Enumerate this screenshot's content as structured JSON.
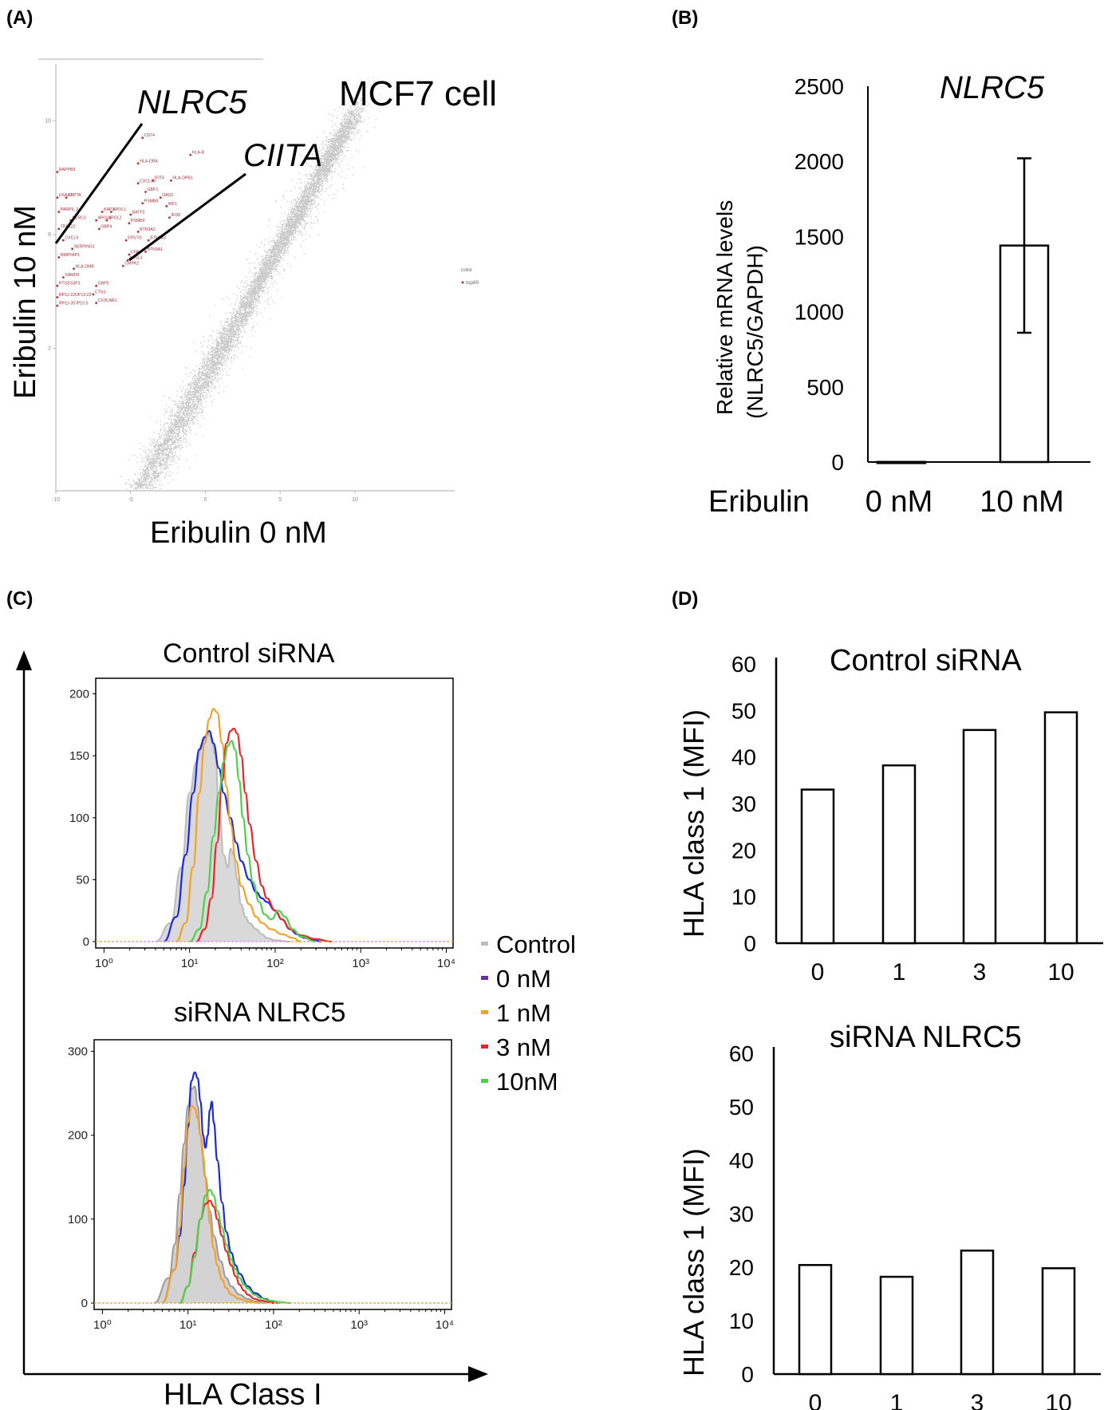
{
  "chart_data": [
    {
      "panel": "(A)",
      "type": "scatter",
      "title": "MCF7 cell",
      "xlabel": "Eribulin 0 nM",
      "ylabel": "Eribulin 10 nM",
      "xlim": [
        -10,
        14
      ],
      "ylim": [
        -3,
        12
      ],
      "x_ticks": [
        "-10",
        "-5",
        "0",
        "5",
        "10"
      ],
      "y_ticks": [
        "2",
        "6",
        "10"
      ],
      "callouts": [
        "NLRC5",
        "CIITA"
      ],
      "highlighted_genes": [
        {
          "label": "CD74",
          "x": -4.2,
          "y": 9.4
        },
        {
          "label": "HLA-B",
          "x": -1.0,
          "y": 8.8
        },
        {
          "label": "HLA-DRA",
          "x": -4.5,
          "y": 8.5
        },
        {
          "label": "IFIT6",
          "x": -3.5,
          "y": 7.9
        },
        {
          "label": "HLA-DPB1",
          "x": -2.3,
          "y": 7.9
        },
        {
          "label": "CXCL10",
          "x": -4.5,
          "y": 7.8
        },
        {
          "label": "GBP1",
          "x": -4.0,
          "y": 7.5
        },
        {
          "label": "OAS2",
          "x": -3.0,
          "y": 7.3
        },
        {
          "label": "PSMB8",
          "x": -4.2,
          "y": 7.1
        },
        {
          "label": "IRF1",
          "x": -2.6,
          "y": 7.0
        },
        {
          "label": "RAPPB3",
          "x": -9.9,
          "y": 8.2
        },
        {
          "label": "USA17",
          "x": -9.9,
          "y": 7.3
        },
        {
          "label": "KBPTA",
          "x": -9.3,
          "y": 7.3
        },
        {
          "label": "KAP1",
          "x": -6.9,
          "y": 6.8
        },
        {
          "label": "APOL1",
          "x": -6.3,
          "y": 6.8
        },
        {
          "label": "PARP9_2",
          "x": -9.8,
          "y": 6.8
        },
        {
          "label": "NLRC3",
          "x": -9.0,
          "y": 6.5
        },
        {
          "label": "APOL3",
          "x": -7.3,
          "y": 6.5
        },
        {
          "label": "APOL2",
          "x": -6.6,
          "y": 6.5
        },
        {
          "label": "BATF2",
          "x": -5.0,
          "y": 6.7
        },
        {
          "label": "GBP4",
          "x": -7.1,
          "y": 6.2
        },
        {
          "label": "PSMB9",
          "x": -5.1,
          "y": 6.4
        },
        {
          "label": "IFI30",
          "x": -2.4,
          "y": 6.6
        },
        {
          "label": "TRIM22",
          "x": -9.8,
          "y": 6.2
        },
        {
          "label": "BTN3A2",
          "x": -4.5,
          "y": 6.1
        },
        {
          "label": "EPSTI1",
          "x": -5.3,
          "y": 5.8
        },
        {
          "label": "CXCL9",
          "x": -9.5,
          "y": 5.8
        },
        {
          "label": "BTN3A3",
          "x": -3.8,
          "y": 5.8
        },
        {
          "label": "SERPING1",
          "x": -8.9,
          "y": 5.5
        },
        {
          "label": "CFB",
          "x": -5.1,
          "y": 5.3
        },
        {
          "label": "BTN3A1",
          "x": -4.0,
          "y": 5.4
        },
        {
          "label": "NMPFAP1",
          "x": -9.8,
          "y": 5.2
        },
        {
          "label": "ACSL3",
          "x": -5.2,
          "y": 5.1
        },
        {
          "label": "CMPK2",
          "x": -5.5,
          "y": 4.9
        },
        {
          "label": "HLA-DMB",
          "x": -8.8,
          "y": 4.8
        },
        {
          "label": "SAMD9",
          "x": -9.5,
          "y": 4.5
        },
        {
          "label": "PTGES3P1",
          "x": -9.9,
          "y": 4.2
        },
        {
          "label": "GBP5",
          "x": -7.3,
          "y": 4.2
        },
        {
          "label": "CTSS",
          "x": -7.5,
          "y": 3.9
        },
        {
          "label": "CX3CAR1",
          "x": -7.3,
          "y": 3.6
        },
        {
          "label": "RP11-22OP13.23",
          "x": -9.9,
          "y": 3.8
        },
        {
          "label": "RP11-357P10.5",
          "x": -9.9,
          "y": 3.5
        }
      ],
      "legend": {
        "title": "color",
        "entries": [
          "top80"
        ],
        "placement": "right"
      }
    },
    {
      "panel": "(B)",
      "type": "bar",
      "title": "NLRC5",
      "ylabel": "Relative mRNA levels (NLRC5/GAPDH)",
      "ylabel_line1": "Relative mRNA levels",
      "ylabel_line2": "(NLRC5/GAPDH)",
      "x_title": "Eribulin",
      "categories": [
        "0 nM",
        "10 nM"
      ],
      "values": [
        1,
        1440
      ],
      "error": [
        3,
        580
      ],
      "ylim": [
        0,
        2500
      ],
      "y_ticks": [
        "0",
        "500",
        "1000",
        "1500",
        "2000",
        "2500"
      ]
    },
    {
      "panel": "(C)",
      "type": "line",
      "subtype": "flow cytometry histogram overlay",
      "xlabel": "HLA Class I",
      "x_scale": "log",
      "xlim": [
        0.8,
        12000
      ],
      "x_ticks": [
        "10⁰",
        "10¹",
        "10²",
        "10³",
        "10⁴"
      ],
      "legend": {
        "placement": "right",
        "entries": [
          {
            "name": "Control",
            "color": "#bdbdbd"
          },
          {
            "name": "0 nM",
            "color": "#6b2ca6"
          },
          {
            "name": "1 nM",
            "color": "#f5a125"
          },
          {
            "name": "3 nM",
            "color": "#e8262a"
          },
          {
            "name": "10nM",
            "color": "#4fd04a"
          }
        ]
      },
      "plots": [
        {
          "title": "Control siRNA",
          "ylim": [
            0,
            210
          ],
          "y_ticks": [
            "0",
            "50",
            "100",
            "150",
            "200"
          ],
          "series": [
            {
              "name": "Control",
              "color": "#bdbdbd",
              "fill": "#d9d9d9",
              "x": [
                4,
                6,
                8,
                10,
                12,
                14,
                16,
                18,
                20,
                22,
                25,
                28,
                30,
                33,
                36,
                40,
                45,
                50,
                60,
                70,
                80,
                100,
                150
              ],
              "y": [
                0,
                15,
                60,
                120,
                145,
                160,
                168,
                165,
                150,
                110,
                70,
                60,
                75,
                70,
                50,
                30,
                20,
                15,
                10,
                6,
                3,
                1,
                0
              ]
            },
            {
              "name": "0 nM",
              "color": "#1c2ad6",
              "x": [
                5,
                7,
                9,
                11,
                13,
                15,
                17,
                19,
                22,
                25,
                30,
                35,
                40,
                50,
                60,
                70,
                80,
                100,
                120,
                150,
                180,
                220,
                280,
                350
              ],
              "y": [
                0,
                20,
                70,
                120,
                155,
                165,
                170,
                160,
                140,
                120,
                100,
                80,
                65,
                50,
                40,
                35,
                32,
                25,
                18,
                10,
                6,
                3,
                1,
                0
              ]
            },
            {
              "name": "1 nM",
              "color": "#f5a125",
              "x": [
                7,
                9,
                11,
                13,
                15,
                17,
                19,
                21,
                24,
                27,
                30,
                35,
                40,
                50,
                60,
                70,
                90,
                120,
                160,
                200
              ],
              "y": [
                0,
                15,
                60,
                120,
                160,
                180,
                188,
                185,
                160,
                125,
                95,
                65,
                45,
                30,
                20,
                15,
                10,
                6,
                3,
                0
              ]
            },
            {
              "name": "3 nM",
              "color": "#e8262a",
              "x": [
                12,
                15,
                18,
                21,
                24,
                27,
                30,
                33,
                36,
                40,
                45,
                50,
                60,
                70,
                80,
                100,
                120,
                150,
                200,
                300,
                450
              ],
              "y": [
                0,
                10,
                35,
                80,
                130,
                160,
                170,
                172,
                168,
                150,
                120,
                95,
                65,
                45,
                35,
                25,
                18,
                10,
                5,
                2,
                0
              ]
            },
            {
              "name": "10nM",
              "color": "#4fd04a",
              "x": [
                10,
                13,
                16,
                19,
                22,
                25,
                28,
                31,
                34,
                38,
                42,
                48,
                55,
                65,
                75,
                90,
                110,
                130,
                160,
                200,
                300
              ],
              "y": [
                0,
                10,
                40,
                85,
                120,
                145,
                158,
                162,
                155,
                130,
                100,
                70,
                48,
                32,
                22,
                18,
                25,
                20,
                10,
                4,
                0
              ]
            }
          ]
        },
        {
          "title": "siRNA NLRC5",
          "ylim": [
            0,
            310
          ],
          "y_ticks": [
            "0",
            "100",
            "200",
            "300"
          ],
          "series": [
            {
              "name": "Control",
              "color": "#9e9e9e",
              "fill": "#d3d3d3",
              "x": [
                4,
                6,
                7,
                8,
                9,
                10,
                11,
                12,
                13,
                14,
                16,
                18,
                20,
                24,
                28,
                32,
                40,
                50,
                60,
                80
              ],
              "y": [
                0,
                30,
                70,
                130,
                190,
                235,
                255,
                258,
                235,
                200,
                150,
                110,
                80,
                50,
                30,
                20,
                10,
                5,
                2,
                0
              ]
            },
            {
              "name": "0 nM",
              "color": "#1c2ad6",
              "x": [
                5,
                7,
                8,
                9,
                10,
                11,
                12,
                13,
                14,
                15,
                16,
                17,
                18,
                19,
                20,
                22,
                25,
                28,
                32,
                36,
                40,
                50,
                60,
                80,
                100
              ],
              "y": [
                0,
                40,
                80,
                140,
                210,
                265,
                275,
                268,
                240,
                200,
                185,
                200,
                230,
                240,
                215,
                170,
                120,
                85,
                60,
                45,
                35,
                20,
                12,
                5,
                0
              ]
            },
            {
              "name": "1 nM",
              "color": "#f5a125",
              "x": [
                5,
                7,
                8,
                9,
                10,
                11,
                12,
                13,
                14,
                15,
                16,
                17,
                18,
                20,
                22,
                25,
                28,
                32,
                40,
                50,
                70
              ],
              "y": [
                0,
                40,
                90,
                160,
                215,
                235,
                232,
                220,
                200,
                175,
                150,
                120,
                95,
                65,
                45,
                28,
                18,
                10,
                5,
                2,
                0
              ]
            },
            {
              "name": "3 nM",
              "color": "#e8262a",
              "x": [
                8,
                10,
                12,
                14,
                16,
                18,
                20,
                22,
                25,
                28,
                32,
                36,
                40,
                45,
                50,
                60,
                70,
                90,
                120
              ],
              "y": [
                0,
                20,
                60,
                100,
                118,
                122,
                115,
                100,
                80,
                62,
                45,
                32,
                22,
                15,
                10,
                5,
                3,
                1,
                0
              ]
            },
            {
              "name": "10nM",
              "color": "#4fd04a",
              "x": [
                8,
                10,
                12,
                14,
                16,
                18,
                20,
                22,
                25,
                28,
                32,
                36,
                40,
                45,
                50,
                60,
                70,
                90,
                120,
                160
              ],
              "y": [
                0,
                20,
                55,
                100,
                128,
                135,
                128,
                110,
                90,
                70,
                52,
                40,
                30,
                22,
                17,
                10,
                6,
                3,
                1,
                0
              ]
            }
          ]
        }
      ]
    },
    {
      "panel": "(D)",
      "type": "bar",
      "ylabel": "HLA class 1 (MFI)",
      "plots": [
        {
          "title": "Control siRNA",
          "categories": [
            "0",
            "1",
            "3",
            "10"
          ],
          "values": [
            33,
            38.2,
            45.8,
            49.6
          ],
          "ylim": [
            0,
            60
          ],
          "y_ticks": [
            "0",
            "10",
            "20",
            "30",
            "40",
            "50",
            "60"
          ]
        },
        {
          "title": "siRNA NLRC5",
          "categories": [
            "0",
            "1",
            "3",
            "10"
          ],
          "values": [
            20.4,
            18.2,
            23.1,
            19.8
          ],
          "ylim": [
            0,
            60
          ],
          "y_ticks": [
            "0",
            "10",
            "20",
            "30",
            "40",
            "50",
            "60"
          ]
        }
      ]
    }
  ]
}
